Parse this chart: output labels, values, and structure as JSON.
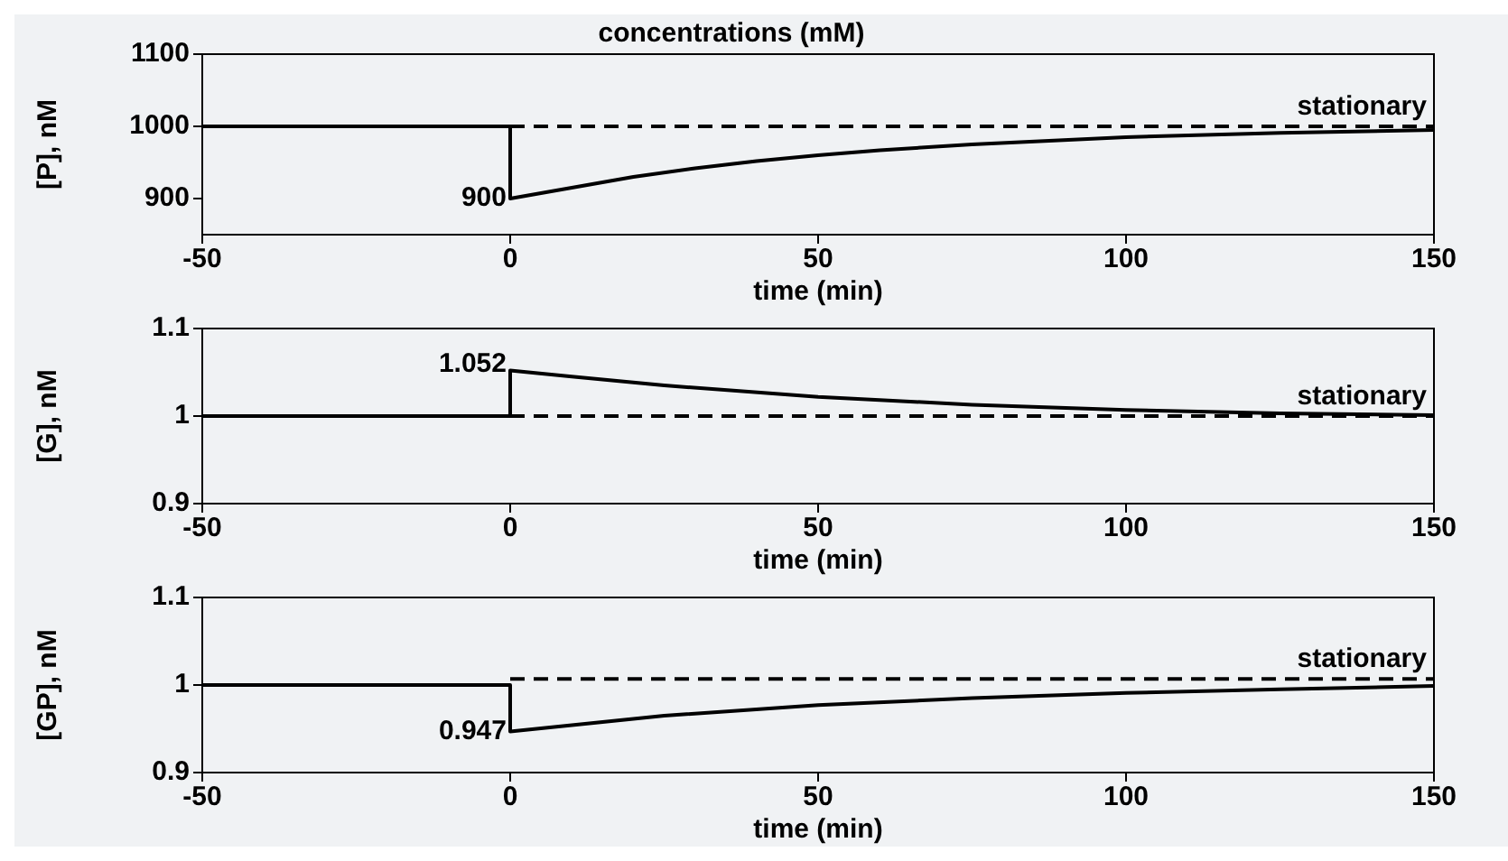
{
  "chart_data": [
    {
      "type": "line",
      "title": "concentrations (mM)",
      "ylabel": "[P], nM",
      "xlabel": "time (min)",
      "xlim": [
        -50,
        150
      ],
      "xticks": [
        -50,
        0,
        50,
        100,
        150
      ],
      "ylim": [
        850,
        1100
      ],
      "yticks": [
        900,
        1000,
        1100
      ],
      "grid": false,
      "legend": false,
      "series": [
        {
          "color": "#000000",
          "line_style": "solid",
          "x": [
            -50,
            0,
            0,
            10,
            20,
            30,
            40,
            50,
            60,
            75,
            100,
            125,
            150
          ],
          "values": [
            1000,
            1000,
            900,
            915,
            930,
            942,
            952,
            960,
            967,
            975,
            985,
            991,
            995
          ],
          "value_labels": [
            null,
            null,
            "900",
            null,
            null,
            null,
            null,
            null,
            null,
            null,
            null,
            null,
            null
          ]
        },
        {
          "name": "stationary",
          "color": "#000000",
          "line_style": "dashed",
          "x": [
            0,
            150
          ],
          "values": [
            1000,
            1000
          ]
        }
      ]
    },
    {
      "type": "line",
      "ylabel": "[G], nM",
      "xlabel": "time (min)",
      "xlim": [
        -50,
        150
      ],
      "xticks": [
        -50,
        0,
        50,
        100,
        150
      ],
      "ylim": [
        0.9,
        1.1
      ],
      "yticks": [
        0.9,
        1,
        1.1
      ],
      "grid": false,
      "legend": false,
      "series": [
        {
          "color": "#000000",
          "line_style": "solid",
          "x": [
            -50,
            0,
            0,
            10,
            25,
            50,
            75,
            100,
            125,
            150
          ],
          "values": [
            1,
            1,
            1.052,
            1.045,
            1.035,
            1.022,
            1.013,
            1.007,
            1.003,
            1.001
          ],
          "value_labels": [
            null,
            null,
            "1.052",
            null,
            null,
            null,
            null,
            null,
            null,
            null
          ]
        },
        {
          "name": "stationary",
          "color": "#000000",
          "line_style": "dashed",
          "x": [
            0,
            150
          ],
          "values": [
            1,
            1
          ]
        }
      ]
    },
    {
      "type": "line",
      "ylabel": "[GP], nM",
      "xlabel": "time (min)",
      "xlim": [
        -50,
        150
      ],
      "xticks": [
        -50,
        0,
        50,
        100,
        150
      ],
      "ylim": [
        0.9,
        1.1
      ],
      "yticks": [
        0.9,
        1,
        1.1
      ],
      "grid": false,
      "legend": false,
      "series": [
        {
          "color": "#000000",
          "line_style": "solid",
          "x": [
            -50,
            0,
            0,
            25,
            50,
            75,
            100,
            125,
            150
          ],
          "values": [
            1,
            1,
            0.947,
            0.965,
            0.977,
            0.985,
            0.991,
            0.995,
            0.999
          ],
          "value_labels": [
            null,
            null,
            "0.947",
            null,
            null,
            null,
            null,
            null,
            null
          ]
        },
        {
          "name": "stationary",
          "color": "#000000",
          "line_style": "dashed",
          "x": [
            0,
            150
          ],
          "values": [
            1.007,
            1.007
          ]
        }
      ]
    }
  ]
}
